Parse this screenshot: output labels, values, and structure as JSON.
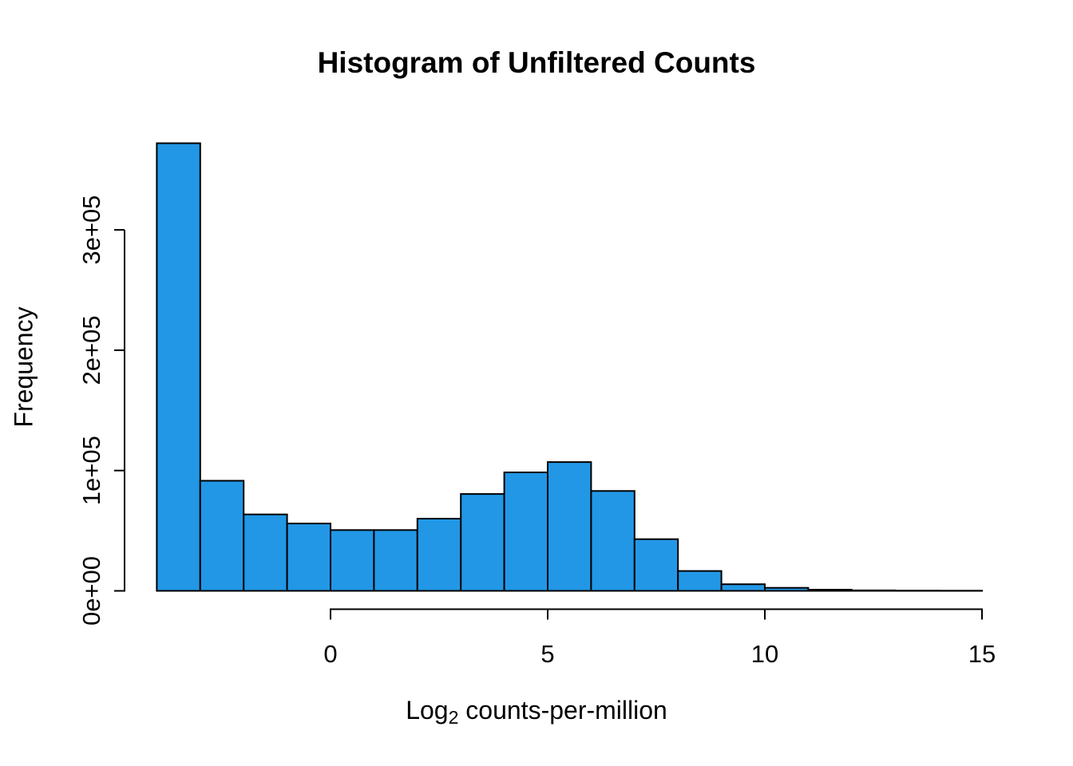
{
  "chart_data": {
    "type": "bar",
    "variant": "histogram",
    "title": "Histogram of Unfiltered Counts",
    "ylabel": "Frequency",
    "xlabel": {
      "prefix": "Log",
      "subscript": "2",
      "rest": " counts-per-million"
    },
    "grid": false,
    "legend": null,
    "xlim": [
      -4,
      15
    ],
    "ylim": [
      0,
      385000
    ],
    "x_axis_line_range": [
      0,
      15
    ],
    "y_axis_line_range": [
      0,
      300000
    ],
    "x_ticks": [
      {
        "value": 0,
        "label": "0"
      },
      {
        "value": 5,
        "label": "5"
      },
      {
        "value": 10,
        "label": "10"
      },
      {
        "value": 15,
        "label": "15"
      }
    ],
    "y_ticks": [
      {
        "value": 0,
        "label": "0e+00"
      },
      {
        "value": 100000,
        "label": "1e+05"
      },
      {
        "value": 200000,
        "label": "2e+05"
      },
      {
        "value": 300000,
        "label": "3e+05"
      }
    ],
    "colors": {
      "bar_fill": "#2297E6",
      "bar_stroke": "#000000",
      "axis": "#000000",
      "text": "#000000",
      "background": "#FFFFFF"
    },
    "bins": [
      {
        "x0": -4,
        "x1": -3,
        "count": 372000
      },
      {
        "x0": -3,
        "x1": -2,
        "count": 91500
      },
      {
        "x0": -2,
        "x1": -1,
        "count": 63500
      },
      {
        "x0": -1,
        "x1": 0,
        "count": 56000
      },
      {
        "x0": 0,
        "x1": 1,
        "count": 50500
      },
      {
        "x0": 1,
        "x1": 2,
        "count": 50500
      },
      {
        "x0": 2,
        "x1": 3,
        "count": 60000
      },
      {
        "x0": 3,
        "x1": 4,
        "count": 80500
      },
      {
        "x0": 4,
        "x1": 5,
        "count": 98500
      },
      {
        "x0": 5,
        "x1": 6,
        "count": 107000
      },
      {
        "x0": 6,
        "x1": 7,
        "count": 83000
      },
      {
        "x0": 7,
        "x1": 8,
        "count": 43000
      },
      {
        "x0": 8,
        "x1": 9,
        "count": 16500
      },
      {
        "x0": 9,
        "x1": 10,
        "count": 5500
      },
      {
        "x0": 10,
        "x1": 11,
        "count": 2500
      },
      {
        "x0": 11,
        "x1": 12,
        "count": 1000
      },
      {
        "x0": 12,
        "x1": 13,
        "count": 400
      },
      {
        "x0": 13,
        "x1": 14,
        "count": 200
      },
      {
        "x0": 14,
        "x1": 15,
        "count": 100
      }
    ]
  }
}
